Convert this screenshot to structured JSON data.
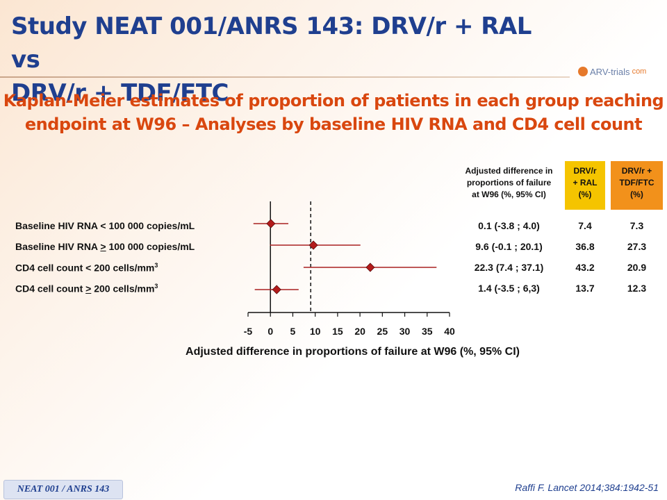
{
  "slide": {
    "title_line1": "Study NEAT 001/ANRS 143: DRV/r + RAL vs",
    "title_line2": "DRV/r + TDF/FTC",
    "logo_text": "ARV-trials",
    "logo_suffix": "com",
    "subtitle_line1": "Kaplan-Meier estimates of proportion of patients in each group reaching",
    "subtitle_line2": "endpoint at W96 – Analyses by baseline HIV RNA and CD4 cell count",
    "footer_tag": "NEAT 001 / ANRS 143",
    "citation": "Raffi F. Lancet 2014;384:1942-51"
  },
  "table": {
    "headers": {
      "diff_line1": "Adjusted difference in",
      "diff_line2": "proportions of failure",
      "diff_line3": "at W96 (%, 95% CI)",
      "ral_line1": "DRV/r",
      "ral_line2": "+ RAL",
      "ral_line3": "(%)",
      "tdf_line1": "DRV/r +",
      "tdf_line2": "TDF/FTC",
      "tdf_line3": "(%)"
    },
    "rows": [
      {
        "label_pre": "Baseline HIV RNA < 100 000 copies/mL",
        "label_geq": "",
        "label_post": "",
        "sup": "",
        "diff": "0.1 (-3.8 ; 4.0)",
        "ral": "7.4",
        "tdf": "7.3"
      },
      {
        "label_pre": "Baseline HIV RNA ",
        "label_geq": ">",
        "label_post": " 100 000 copies/mL",
        "sup": "",
        "diff": "9.6 (-0.1 ; 20.1)",
        "ral": "36.8",
        "tdf": "27.3"
      },
      {
        "label_pre": "CD4 cell count < 200 cells/mm",
        "label_geq": "",
        "label_post": "",
        "sup": "3",
        "diff": "22.3 (7.4 ; 37.1)",
        "ral": "43.2",
        "tdf": "20.9"
      },
      {
        "label_pre": "CD4 cell count ",
        "label_geq": ">",
        "label_post": " 200 cells/mm",
        "sup": "3",
        "diff": "1.4 (-3.5 ; 6,3)",
        "ral": "13.7",
        "tdf": "12.3"
      }
    ]
  },
  "chart_data": {
    "type": "forest",
    "xlabel": "Adjusted difference in proportions of failure at W96 (%, 95% CI)",
    "xlim": [
      -5,
      40
    ],
    "xticks": [
      -5,
      0,
      5,
      10,
      15,
      20,
      25,
      30,
      35,
      40
    ],
    "reference_line": 0,
    "dashed_line": 9,
    "point_color": "#b31b1b",
    "ci_color": "#a82020",
    "rows": [
      {
        "estimate": 0.1,
        "lower": -3.8,
        "upper": 4.0
      },
      {
        "estimate": 9.6,
        "lower": -0.1,
        "upper": 20.1
      },
      {
        "estimate": 22.3,
        "lower": 7.4,
        "upper": 37.1
      },
      {
        "estimate": 1.4,
        "lower": -3.5,
        "upper": 6.3
      }
    ]
  }
}
